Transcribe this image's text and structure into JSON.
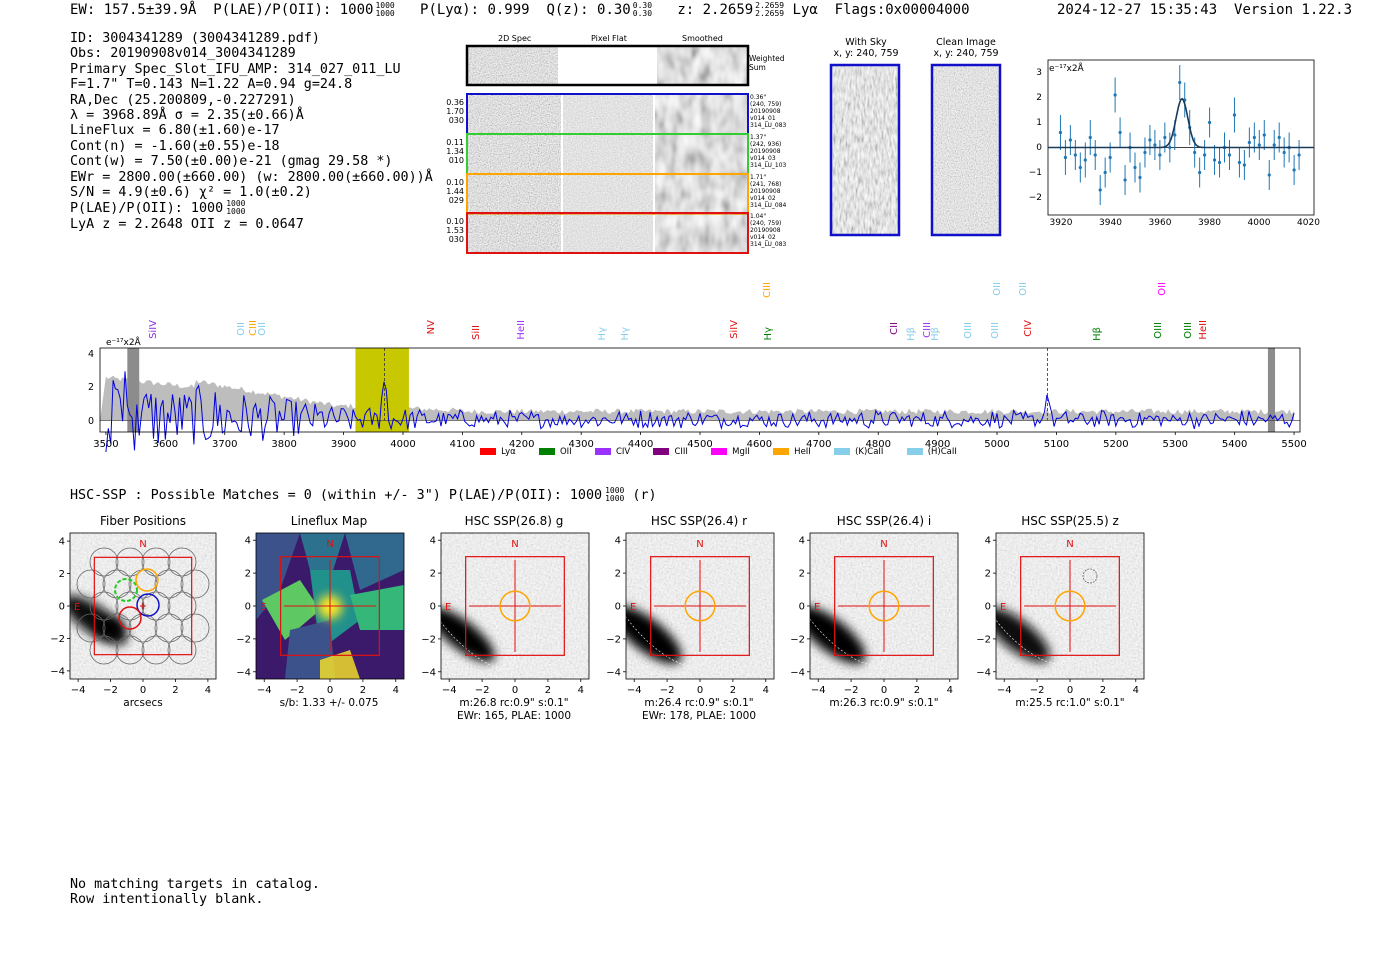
{
  "header": {
    "ew": "EW: 157.5±39.9Å",
    "plae_label": "P(LAE)/P(OII): 1000",
    "plae_sup": "1000",
    "plae_sub": "1000",
    "plya": "P(Lyα): 0.999",
    "qz_label": "Q(z): 0.30",
    "qz_sup": "0.30",
    "qz_sub": "0.30",
    "z_label": "z: 2.2659",
    "z_sup": "2.2659",
    "z_sub": "2.2659",
    "z_line": "Lyα",
    "flags": "Flags:0x00004000",
    "timestamp": "2024-12-27 15:35:43",
    "version": "Version 1.22.3"
  },
  "stats": {
    "id": "ID: 3004341289 (3004341289.pdf)",
    "obs": "Obs: 20190908v014_3004341289",
    "primary": "Primary Spec_Slot_IFU_AMP: 314_027_011_LU",
    "fwhm": "F=1.7\"  T=0.143  N=1.22  A=0.94  g=24.8",
    "radec": "RA,Dec (25.200809,-0.227291)",
    "lambda": "λ = 3968.89Å   σ = 2.35(±0.66)Å",
    "lineflux": "LineFlux = 6.80(±1.60)e-17",
    "contn": "Cont(n) = -1.60(±0.55)e-18",
    "contw": "Cont(w) = 7.50(±0.00)e-21 (gmag 29.58 *)",
    "ewr": "EWr = 2800.00(±660.00) (w: 2800.00(±660.00))Å",
    "sn": "S/N = 4.9(±0.6)  χ² = 1.0(±0.2)",
    "plae": "P(LAE)/P(OII): 1000",
    "plae_sup": "1000",
    "plae_sub": "1000",
    "lya": "LyA z = 2.2648   OII z = 0.0647"
  },
  "cutouts": {
    "col_titles": [
      "2D Spec",
      "Pixel Flat",
      "Smoothed"
    ],
    "weighted_label": "Weighted\nSum",
    "rows": [
      {
        "left": "0.36\n1.70\n030",
        "stamp": "0.36\"\n(240, 759)\n20190908\nv014_01\n314_LU_083",
        "color": "#1010c8"
      },
      {
        "left": "0.11\n1.34\n010",
        "stamp": "1.37\"\n(242, 936)\n20190908\nv014_03\n314_LU_103",
        "color": "#32cd32"
      },
      {
        "left": "0.10\n1.44\n029",
        "stamp": "1.71\"\n(241, 768)\n20190908\nv014_02\n314_LU_084",
        "color": "#ffa500"
      },
      {
        "left": "0.10\n1.53\n030",
        "stamp": "1.04\"\n(240, 759)\n20190908\nv014_02\n314_LU_083",
        "color": "#e01010"
      }
    ],
    "with_sky": "With Sky",
    "with_sky_xy": "x, y: 240, 759",
    "clean": "Clean Image",
    "clean_xy": "x, y: 240, 759"
  },
  "fit_chart": {
    "ylabel": "e⁻¹⁷x2Å",
    "xticks": [
      "3920",
      "3940",
      "3960",
      "3980",
      "4000",
      "4020"
    ],
    "yticks": [
      "3",
      "2",
      "1",
      "0",
      "−1",
      "−2"
    ]
  },
  "spectrum": {
    "ylabel": "e⁻¹⁷x2Å",
    "xticks": [
      "3500",
      "3600",
      "3700",
      "3800",
      "3900",
      "4000",
      "4100",
      "4200",
      "4300",
      "4400",
      "4500",
      "4600",
      "4700",
      "4800",
      "4900",
      "5000",
      "5100",
      "5200",
      "5300",
      "5400",
      "5500"
    ],
    "yticks": [
      "4",
      "2",
      "0"
    ],
    "lines": [
      {
        "label": "SiIV",
        "color": "#8a2be2"
      },
      {
        "label": "OII",
        "color": "#87ceeb"
      },
      {
        "label": "CIII",
        "color": "#ffa500"
      },
      {
        "label": "OII",
        "color": "#87ceeb"
      },
      {
        "label": "NV",
        "color": "#e01010"
      },
      {
        "label": "SiII",
        "color": "#e01010"
      },
      {
        "label": "HeII",
        "color": "#9b30ff"
      },
      {
        "label": "Hγ",
        "color": "#87ceeb"
      },
      {
        "label": "Hγ",
        "color": "#87ceeb"
      },
      {
        "label": "SiIV",
        "color": "#e01010"
      },
      {
        "label": "CIII",
        "color": "#ffa500"
      },
      {
        "label": "Hγ",
        "color": "#008000"
      },
      {
        "label": "CII",
        "color": "#800080"
      },
      {
        "label": "Hβ",
        "color": "#87ceeb"
      },
      {
        "label": "CIII",
        "color": "#9b30ff"
      },
      {
        "label": "Hβ",
        "color": "#87ceeb"
      },
      {
        "label": "OIII",
        "color": "#87ceeb"
      },
      {
        "label": "OIII",
        "color": "#87ceeb"
      },
      {
        "label": "OII",
        "color": "#87ceeb"
      },
      {
        "label": "OII",
        "color": "#87ceeb"
      },
      {
        "label": "CIV",
        "color": "#e01010"
      },
      {
        "label": "Hβ",
        "color": "#008000"
      },
      {
        "label": "OII",
        "color": "#ff00ff"
      },
      {
        "label": "OIII",
        "color": "#008000"
      },
      {
        "label": "OIII",
        "color": "#008000"
      },
      {
        "label": "HeII",
        "color": "#e01010"
      }
    ],
    "legend": [
      {
        "label": "Lyα",
        "color": "#ff0000"
      },
      {
        "label": "OII",
        "color": "#008000"
      },
      {
        "label": "CIV",
        "color": "#9b30ff"
      },
      {
        "label": "CIII",
        "color": "#800080"
      },
      {
        "label": "MgII",
        "color": "#ff00ff"
      },
      {
        "label": "HeII",
        "color": "#ffa500"
      },
      {
        "label": "(K)CaII",
        "color": "#87ceeb"
      },
      {
        "label": "(H)CaII",
        "color": "#87ceeb"
      }
    ]
  },
  "hsc": {
    "line": "HSC-SSP : Possible Matches = 0 (within +/- 3\")  P(LAE)/P(OII): 1000",
    "sup": "1000",
    "sub": "1000",
    "tail": "(r)",
    "panels": [
      {
        "title": "Fiber Positions",
        "cap1": "arcsecs",
        "cap2": ""
      },
      {
        "title": "Lineflux Map",
        "cap1": "s/b: 1.33 +/- 0.075",
        "cap2": ""
      },
      {
        "title": "HSC SSP(26.8) g",
        "cap1": "m:26.8 rc:0.9\"  s:0.1\"",
        "cap2": "EWr: 165, PLAE: 1000"
      },
      {
        "title": "HSC SSP(26.4) r",
        "cap1": "m:26.4 rc:0.9\"  s:0.1\"",
        "cap2": "EWr: 178, PLAE: 1000"
      },
      {
        "title": "HSC SSP(26.4) i",
        "cap1": "m:26.3 rc:0.9\"  s:0.1\"",
        "cap2": ""
      },
      {
        "title": "HSC SSP(25.5) z",
        "cap1": "m:25.5 rc:1.0\"  s:0.1\"",
        "cap2": ""
      }
    ],
    "ticks": [
      "−4",
      "−2",
      "0",
      "2",
      "4"
    ],
    "n": "N",
    "e": "E"
  },
  "footer": {
    "line1": "No matching targets in catalog.",
    "line2": "Row intentionally blank."
  },
  "chart_data": [
    {
      "type": "scatter",
      "title": "Line fit",
      "ylabel": "e-17x2Å",
      "xlim": [
        3915,
        4022
      ],
      "ylim": [
        -2.7,
        3.5
      ],
      "x": [
        3920,
        3922,
        3924,
        3926,
        3928,
        3930,
        3932,
        3934,
        3936,
        3938,
        3940,
        3942,
        3944,
        3946,
        3948,
        3950,
        3952,
        3954,
        3956,
        3958,
        3960,
        3962,
        3964,
        3966,
        3968,
        3970,
        3972,
        3974,
        3976,
        3978,
        3980,
        3982,
        3984,
        3986,
        3988,
        3990,
        3992,
        3994,
        3996,
        3998,
        4000,
        4002,
        4004,
        4006,
        4008,
        4010,
        4012,
        4014,
        4016
      ],
      "y": [
        0.6,
        -0.4,
        0.3,
        -0.3,
        -0.8,
        -0.5,
        0.4,
        -0.3,
        -1.7,
        -1.0,
        -0.4,
        2.1,
        0.6,
        -1.3,
        0.0,
        -0.8,
        -1.2,
        -0.2,
        0.3,
        0.1,
        -0.3,
        0.4,
        0.0,
        0.5,
        2.6,
        1.9,
        0.8,
        -0.2,
        -1.0,
        -0.3,
        1.0,
        -0.5,
        -0.6,
        0.0,
        -0.3,
        1.3,
        -0.6,
        -0.7,
        0.2,
        0.4,
        0.1,
        0.5,
        -1.1,
        0.1,
        0.4,
        -0.2,
        0.0,
        -0.9,
        -0.3
      ],
      "err": [
        0.7,
        0.7,
        0.6,
        0.6,
        0.6,
        0.7,
        0.7,
        0.6,
        0.6,
        0.6,
        0.6,
        0.7,
        0.6,
        0.6,
        0.6,
        0.6,
        0.6,
        0.6,
        0.6,
        0.6,
        0.6,
        0.6,
        0.6,
        0.6,
        0.7,
        0.7,
        0.7,
        0.6,
        0.6,
        0.6,
        0.6,
        0.6,
        0.6,
        0.6,
        0.6,
        0.7,
        0.6,
        0.6,
        0.6,
        0.6,
        0.6,
        0.6,
        0.6,
        0.6,
        0.6,
        0.6,
        0.6,
        0.6,
        0.6
      ],
      "fit_center": 3968.89,
      "fit_sigma": 2.35,
      "fit_amp": 1.95
    },
    {
      "type": "line",
      "title": "Full spectrum",
      "ylabel": "e-17x2Å",
      "xlim": [
        3490,
        5510
      ],
      "ylim": [
        -0.7,
        4.4
      ],
      "highlight_range": [
        3920,
        4010
      ],
      "marker_x": [
        3968.9,
        5085
      ],
      "line_wavelengths": [
        3565,
        3728,
        3750,
        3760,
        4010,
        4135,
        4212,
        4345,
        4385,
        4560,
        4615,
        4625,
        4830,
        4855,
        4880,
        4895,
        4960,
        5005,
        5050,
        5065,
        5080,
        5185,
        5275,
        5290,
        5300,
        5330
      ],
      "note": "noise-like blue spectrum with grey error envelope decreasing from ~3 near 3500 to ~0.6 beyond 4000"
    }
  ]
}
